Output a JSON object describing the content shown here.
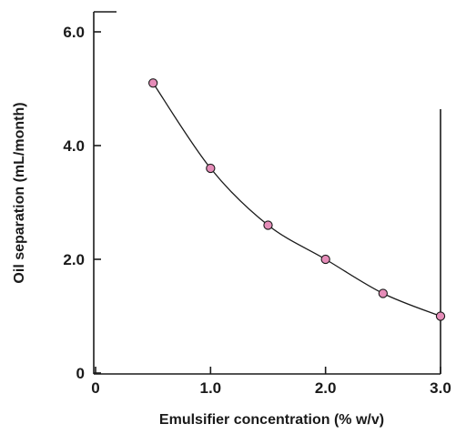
{
  "chart_data": {
    "type": "scatter",
    "title": "",
    "xlabel": "Emulsifier concentration (% w/v)",
    "ylabel": "Oil separation (mL/month)",
    "xlim": [
      0,
      3.0
    ],
    "ylim": [
      0,
      6.0
    ],
    "x_ticks": [
      0,
      1.0,
      2.0,
      3.0
    ],
    "x_tick_labels": [
      "0",
      "1.0",
      "2.0",
      "3.0"
    ],
    "y_ticks": [
      0,
      2.0,
      4.0,
      6.0
    ],
    "y_tick_labels": [
      "0",
      "2.0",
      "4.0",
      "6.0"
    ],
    "grid": false,
    "trend_line": true,
    "marker_color": "#e58cb8",
    "series": [
      {
        "x": [
          0.5,
          1.0,
          1.5,
          2.0,
          2.5,
          3.0
        ],
        "y": [
          5.1,
          3.6,
          2.6,
          2.0,
          1.4,
          1.0
        ]
      }
    ]
  }
}
